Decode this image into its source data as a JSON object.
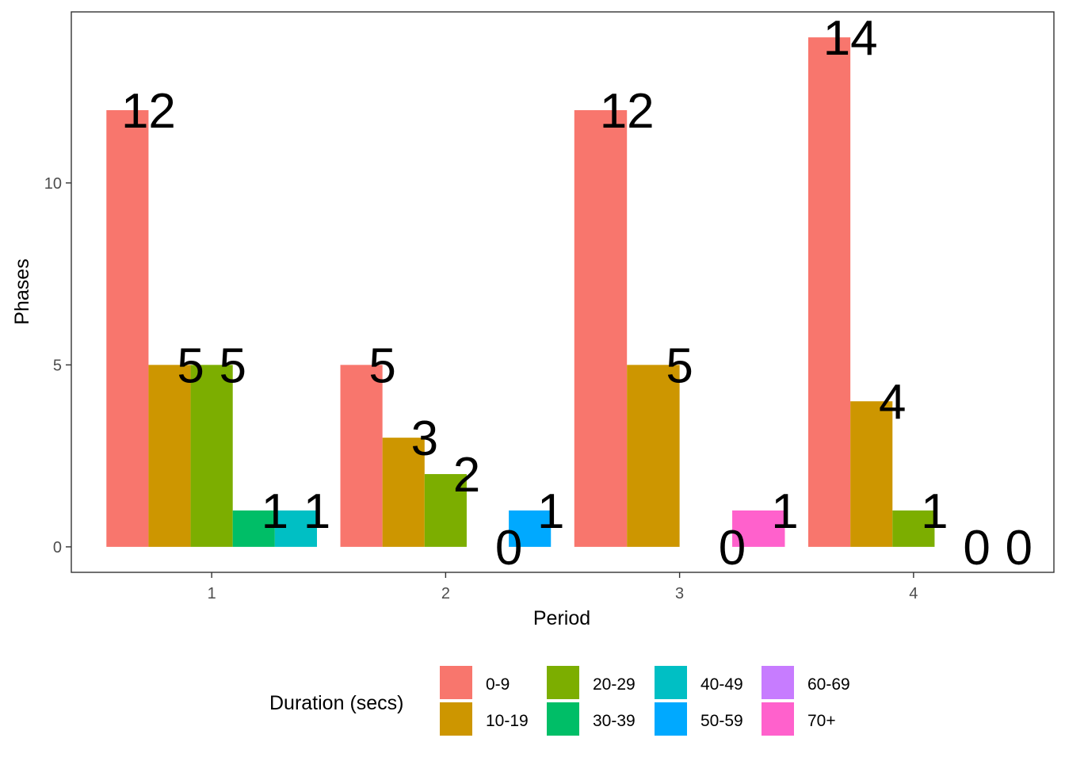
{
  "chart_data": {
    "type": "bar",
    "xlabel": "Period",
    "ylabel": "Phases",
    "categories": [
      "1",
      "2",
      "3",
      "4"
    ],
    "yticks": [
      0,
      5,
      10
    ],
    "ylim": [
      -0.7,
      14.7
    ],
    "grid": false,
    "legend_position": "bottom",
    "legend_title": "Duration (secs)",
    "legend": [
      {
        "name": "0-9",
        "color": "#F8766D"
      },
      {
        "name": "10-19",
        "color": "#CD9600"
      },
      {
        "name": "20-29",
        "color": "#7CAE00"
      },
      {
        "name": "30-39",
        "color": "#00BE67"
      },
      {
        "name": "40-49",
        "color": "#00BFC4"
      },
      {
        "name": "50-59",
        "color": "#00A9FF"
      },
      {
        "name": "60-69",
        "color": "#C77CFF"
      },
      {
        "name": "70+",
        "color": "#FF61CC"
      }
    ],
    "groups": [
      {
        "period": "1",
        "bars": [
          {
            "duration": "0-9",
            "value": 12,
            "label": "12"
          },
          {
            "duration": "10-19",
            "value": 5,
            "label": "5"
          },
          {
            "duration": "20-29",
            "value": 5,
            "label": "5"
          },
          {
            "duration": "30-39",
            "value": 1,
            "label": "1"
          },
          {
            "duration": "40-49",
            "value": 1,
            "label": "1"
          }
        ]
      },
      {
        "period": "2",
        "bars": [
          {
            "duration": "0-9",
            "value": 5,
            "label": "5"
          },
          {
            "duration": "10-19",
            "value": 3,
            "label": "3"
          },
          {
            "duration": "20-29",
            "value": 2,
            "label": "2"
          },
          {
            "duration": "40-49",
            "value": 0,
            "label": "0"
          },
          {
            "duration": "50-59",
            "value": 1,
            "label": "1"
          }
        ]
      },
      {
        "period": "3",
        "bars": [
          {
            "duration": "0-9",
            "value": 12,
            "label": "12"
          },
          {
            "duration": "10-19",
            "value": 5,
            "label": "5"
          },
          {
            "duration": "50-59",
            "value": 0,
            "label": "0"
          },
          {
            "duration": "70+",
            "value": 1,
            "label": "1"
          }
        ]
      },
      {
        "period": "4",
        "bars": [
          {
            "duration": "0-9",
            "value": 14,
            "label": "14"
          },
          {
            "duration": "10-19",
            "value": 4,
            "label": "4"
          },
          {
            "duration": "20-29",
            "value": 1,
            "label": "1"
          },
          {
            "duration": "50-59",
            "value": 0,
            "label": "0"
          },
          {
            "duration": "60-69",
            "value": 0,
            "label": "0"
          }
        ]
      }
    ]
  }
}
